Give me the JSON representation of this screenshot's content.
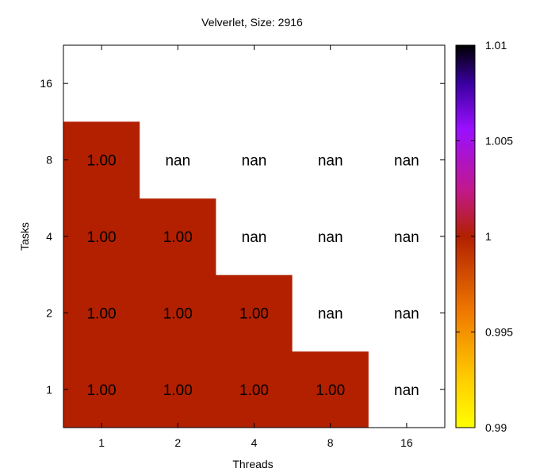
{
  "chart_data": {
    "type": "heatmap",
    "title": "Velverlet, Size: 2916",
    "xlabel": "Threads",
    "ylabel": "Tasks",
    "x_categories": [
      "1",
      "2",
      "4",
      "8",
      "16"
    ],
    "y_categories": [
      "1",
      "2",
      "4",
      "8",
      "16"
    ],
    "cells": [
      {
        "x": "1",
        "y": "1",
        "value": 1.0,
        "label": "1.00"
      },
      {
        "x": "2",
        "y": "1",
        "value": 1.0,
        "label": "1.00"
      },
      {
        "x": "4",
        "y": "1",
        "value": 1.0,
        "label": "1.00"
      },
      {
        "x": "8",
        "y": "1",
        "value": 1.0,
        "label": "1.00"
      },
      {
        "x": "16",
        "y": "1",
        "value": null,
        "label": "nan"
      },
      {
        "x": "1",
        "y": "2",
        "value": 1.0,
        "label": "1.00"
      },
      {
        "x": "2",
        "y": "2",
        "value": 1.0,
        "label": "1.00"
      },
      {
        "x": "4",
        "y": "2",
        "value": 1.0,
        "label": "1.00"
      },
      {
        "x": "8",
        "y": "2",
        "value": null,
        "label": "nan"
      },
      {
        "x": "16",
        "y": "2",
        "value": null,
        "label": "nan"
      },
      {
        "x": "1",
        "y": "4",
        "value": 1.0,
        "label": "1.00"
      },
      {
        "x": "2",
        "y": "4",
        "value": 1.0,
        "label": "1.00"
      },
      {
        "x": "4",
        "y": "4",
        "value": null,
        "label": "nan"
      },
      {
        "x": "8",
        "y": "4",
        "value": null,
        "label": "nan"
      },
      {
        "x": "16",
        "y": "4",
        "value": null,
        "label": "nan"
      },
      {
        "x": "1",
        "y": "8",
        "value": 1.0,
        "label": "1.00"
      },
      {
        "x": "2",
        "y": "8",
        "value": null,
        "label": "nan"
      },
      {
        "x": "4",
        "y": "8",
        "value": null,
        "label": "nan"
      },
      {
        "x": "8",
        "y": "8",
        "value": null,
        "label": "nan"
      },
      {
        "x": "16",
        "y": "8",
        "value": null,
        "label": "nan"
      }
    ],
    "colorbar": {
      "min": 0.99,
      "max": 1.01,
      "ticks": [
        {
          "value": 0.99,
          "label": "0.99"
        },
        {
          "value": 0.995,
          "label": "0.995"
        },
        {
          "value": 1.0,
          "label": "1"
        },
        {
          "value": 1.005,
          "label": "1.005"
        },
        {
          "value": 1.01,
          "label": "1.01"
        }
      ]
    },
    "colors": {
      "cell_fill": "#b22000",
      "nan_fill": "#ffffff",
      "frame": "#000000"
    }
  }
}
